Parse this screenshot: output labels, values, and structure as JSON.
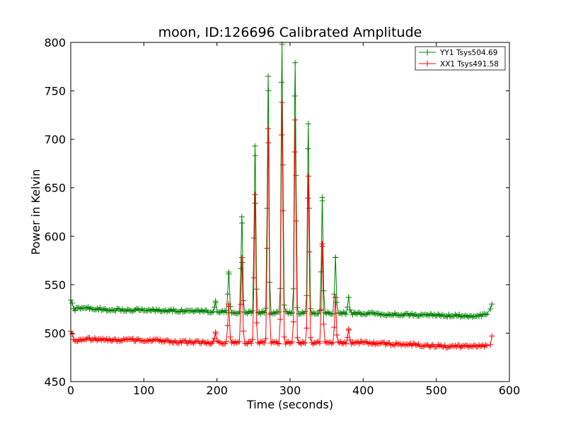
{
  "chart_data": {
    "type": "line",
    "title": "moon, ID:126696 Calibrated Amplitude",
    "xlabel": "Time (seconds)",
    "ylabel": "Power in Kelvin",
    "xlim": [
      0,
      600
    ],
    "ylim": [
      450,
      800
    ],
    "x_ticks": [
      0,
      100,
      200,
      300,
      400,
      500,
      600
    ],
    "y_ticks": [
      450,
      500,
      550,
      600,
      650,
      700,
      750,
      800
    ],
    "grid": false,
    "legend_position": "top-right",
    "marker": "plus",
    "sample_interval_seconds": 1.8,
    "x_range": [
      0,
      576
    ],
    "series": [
      {
        "name": "YY1 Tsys504.69",
        "color": "#008000",
        "baseline": [
          [
            0,
            524
          ],
          [
            20,
            526
          ],
          [
            60,
            524
          ],
          [
            100,
            524
          ],
          [
            150,
            523
          ],
          [
            200,
            522
          ],
          [
            260,
            521
          ],
          [
            320,
            521
          ],
          [
            400,
            520
          ],
          [
            470,
            519
          ],
          [
            520,
            518
          ],
          [
            560,
            518
          ],
          [
            572,
            519
          ]
        ],
        "peaks": [
          [
            198,
            533
          ],
          [
            216,
            563
          ],
          [
            234,
            620
          ],
          [
            252,
            693
          ],
          [
            270,
            765
          ],
          [
            289,
            798
          ],
          [
            307,
            779
          ],
          [
            325,
            716
          ],
          [
            344,
            640
          ],
          [
            362,
            578
          ],
          [
            380,
            537
          ]
        ],
        "start_points": [
          [
            0,
            534
          ],
          [
            2,
            531
          ]
        ],
        "end_points": [
          [
            574,
            525
          ],
          [
            576,
            530
          ]
        ]
      },
      {
        "name": "XX1 Tsys491.58",
        "color": "#ff0000",
        "baseline": [
          [
            0,
            492
          ],
          [
            20,
            494
          ],
          [
            60,
            493
          ],
          [
            100,
            493
          ],
          [
            150,
            491
          ],
          [
            200,
            490
          ],
          [
            260,
            490
          ],
          [
            320,
            490
          ],
          [
            400,
            490
          ],
          [
            470,
            488
          ],
          [
            520,
            486
          ],
          [
            560,
            487
          ],
          [
            572,
            488
          ]
        ],
        "peaks": [
          [
            198,
            501
          ],
          [
            216,
            530
          ],
          [
            234,
            578
          ],
          [
            252,
            643
          ],
          [
            270,
            711
          ],
          [
            289,
            738
          ],
          [
            307,
            720
          ],
          [
            325,
            662
          ],
          [
            344,
            592
          ],
          [
            362,
            537
          ],
          [
            380,
            503
          ]
        ],
        "start_points": [
          [
            0,
            502
          ],
          [
            2,
            499
          ]
        ],
        "end_points": [
          [
            574,
            488
          ],
          [
            576,
            497
          ]
        ]
      }
    ]
  }
}
